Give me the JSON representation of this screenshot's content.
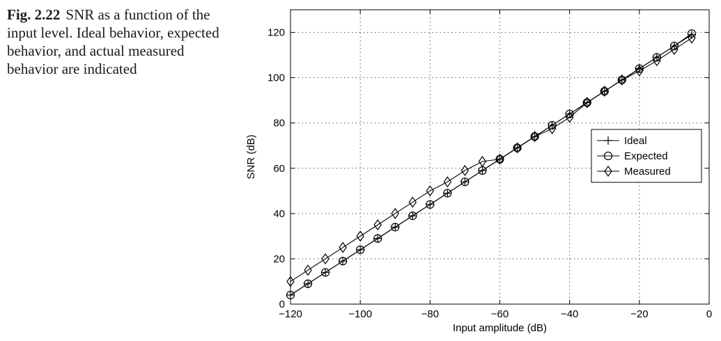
{
  "caption": {
    "label": "Fig. 2.22",
    "text": "SNR as a function of the input level. Ideal behavior, expected behavior, and actual measured behavior are indicated"
  },
  "chart_data": {
    "type": "line",
    "title": "",
    "xlabel": "Input amplitude (dB)",
    "ylabel": "SNR (dB)",
    "xlim": [
      -120,
      0
    ],
    "ylim": [
      0,
      130
    ],
    "xticks": [
      -120,
      -100,
      -80,
      -60,
      -40,
      -20,
      0
    ],
    "yticks": [
      0,
      20,
      40,
      60,
      80,
      100,
      120
    ],
    "xtick_labels": [
      "−120",
      "−100",
      "−80",
      "−60",
      "−40",
      "−20",
      "0"
    ],
    "ytick_labels": [
      "0",
      "20",
      "40",
      "60",
      "80",
      "100",
      "120"
    ],
    "grid": true,
    "legend_position": "right",
    "series": [
      {
        "name": "Ideal",
        "marker": "plus",
        "x": [
          -120,
          -115,
          -110,
          -105,
          -100,
          -95,
          -90,
          -85,
          -80,
          -75,
          -70,
          -65,
          -60,
          -55,
          -50,
          -45,
          -40,
          -35,
          -30,
          -25,
          -20,
          -15,
          -10,
          -5
        ],
        "y": [
          4,
          9,
          14,
          19,
          24,
          29,
          34,
          39,
          44,
          49,
          54,
          59,
          64,
          69,
          74,
          79,
          84,
          89,
          94,
          99,
          104,
          109,
          114,
          119
        ]
      },
      {
        "name": "Expected",
        "marker": "circle",
        "x": [
          -120,
          -115,
          -110,
          -105,
          -100,
          -95,
          -90,
          -85,
          -80,
          -75,
          -70,
          -65,
          -60,
          -55,
          -50,
          -45,
          -40,
          -35,
          -30,
          -25,
          -20,
          -15,
          -10,
          -5
        ],
        "y": [
          4,
          9,
          14,
          19,
          24,
          29,
          34,
          39,
          44,
          49,
          54,
          59,
          64,
          69,
          74,
          79,
          84,
          89,
          94,
          99,
          104,
          109,
          114,
          119.5
        ]
      },
      {
        "name": "Measured",
        "marker": "diamond",
        "x": [
          -120,
          -115,
          -110,
          -105,
          -100,
          -95,
          -90,
          -85,
          -80,
          -75,
          -70,
          -65,
          -60,
          -55,
          -50,
          -45,
          -40,
          -35,
          -30,
          -25,
          -20,
          -15,
          -10,
          -5
        ],
        "y": [
          10,
          15,
          20,
          25,
          30,
          35,
          40,
          45,
          50,
          54,
          59,
          63,
          64,
          69,
          74,
          77.5,
          82.5,
          89,
          94,
          99,
          103,
          107.5,
          112.5,
          117.5
        ]
      }
    ]
  }
}
